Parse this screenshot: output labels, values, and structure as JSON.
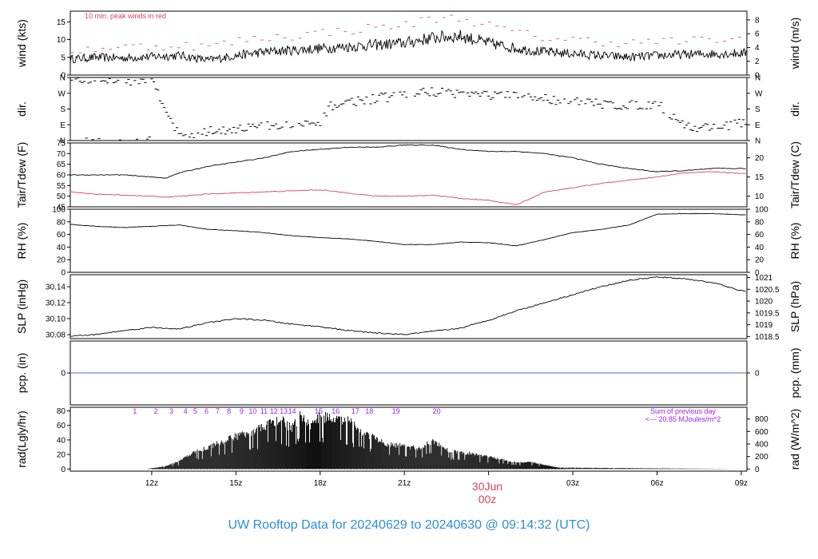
{
  "title": "UW Rooftop Data for 20240629  to  20240630 @ 09:14:32  (UTC)",
  "date_marker": {
    "date": "30Jun",
    "time": "00z"
  },
  "colors": {
    "primary": "#000000",
    "secondary": "#d6455a",
    "pcp": "#4a6fb5",
    "annot": "#a020f0",
    "title": "#2b8fd6"
  },
  "chart_data": [
    {
      "id": "wind",
      "type": "line",
      "ylabel_left": "wind (kts)",
      "ylabel_right": "wind (m/s)",
      "annotation": "10 min. peak winds in red",
      "ylim": [
        0,
        18
      ],
      "yticks_left": [
        0,
        5,
        10,
        15
      ],
      "ylim_right": [
        0,
        9.26
      ],
      "yticks_right": [
        0,
        2,
        4,
        6,
        8
      ],
      "x_hours": [
        9.1,
        10,
        11,
        12,
        13,
        14,
        15,
        16,
        17,
        18,
        19,
        20,
        21,
        22,
        23,
        24,
        25,
        26,
        27,
        28,
        29,
        30,
        31,
        32,
        33.2
      ],
      "series": [
        {
          "values": [
            4.5,
            5,
            4.8,
            5.2,
            5.5,
            4.2,
            5.5,
            6.5,
            7,
            7.5,
            8,
            8.5,
            9,
            10.5,
            11,
            9,
            7.5,
            6.5,
            6,
            5.5,
            5,
            5.5,
            5.8,
            6,
            6.2
          ]
        },
        {
          "values": [
            7,
            7.5,
            8,
            8,
            8.5,
            8,
            9.5,
            10.5,
            11,
            12,
            12.5,
            13.5,
            14,
            16,
            16,
            14,
            12,
            10.5,
            10,
            9.5,
            9,
            9.5,
            9.5,
            10,
            10
          ]
        }
      ]
    },
    {
      "id": "dir",
      "type": "scatter",
      "ylabel_left": "dir.",
      "ylabel_right": "dir.",
      "ylim": [
        0,
        360
      ],
      "yticks_left_labels": [
        "N",
        "E",
        "S",
        "W",
        "N"
      ],
      "yticks_right_labels": [
        "N",
        "E",
        "S",
        "W",
        "N"
      ],
      "ytick_values": [
        0,
        90,
        180,
        270,
        360
      ],
      "x_hours": [
        9.1,
        10,
        11,
        12,
        13,
        14,
        15,
        16,
        17,
        18,
        18.4,
        19,
        20,
        21,
        22,
        23,
        24,
        25,
        26,
        27,
        28,
        29,
        30,
        31,
        31.2,
        32,
        33.2
      ],
      "series": [
        {
          "values": [
            345,
            350,
            340,
            355,
            20,
            50,
            70,
            80,
            85,
            90,
            200,
            220,
            240,
            260,
            280,
            270,
            260,
            250,
            240,
            220,
            210,
            200,
            210,
            90,
            70,
            80,
            100
          ]
        }
      ]
    },
    {
      "id": "temp",
      "type": "line",
      "ylabel_left": "Tair/Tdew (F)",
      "ylabel_right": "Tair/Tdew (C)",
      "ylim": [
        45,
        75
      ],
      "yticks_left": [
        45,
        50,
        55,
        60,
        65,
        70,
        75
      ],
      "ylim_right": [
        7.22,
        23.89
      ],
      "yticks_right": [
        10,
        15,
        20
      ],
      "x_hours": [
        9.1,
        10,
        11,
        12,
        12.5,
        13,
        14,
        15,
        16,
        17,
        18,
        19,
        20,
        21,
        22,
        23,
        24,
        25,
        26,
        27,
        28,
        29,
        30,
        31,
        32,
        33.2
      ],
      "series": [
        {
          "values": [
            60,
            60,
            60,
            59,
            58.5,
            61,
            64,
            66,
            68,
            71,
            72,
            73,
            73,
            74,
            74,
            72,
            71,
            71,
            70,
            68,
            65,
            63,
            61.5,
            62,
            63,
            63
          ]
        },
        {
          "values": [
            52,
            51,
            50.5,
            50,
            49.5,
            50,
            51,
            51.5,
            52,
            52.5,
            53,
            51.5,
            50,
            50,
            50.5,
            49,
            48,
            46,
            52,
            54,
            56,
            57.5,
            59,
            61,
            61.5,
            60.5
          ]
        }
      ]
    },
    {
      "id": "rh",
      "type": "line",
      "ylabel_left": "RH (%)",
      "ylabel_right": "RH (%)",
      "ylim": [
        0,
        100
      ],
      "yticks_left": [
        0,
        20,
        40,
        60,
        80,
        100
      ],
      "ylim_right": [
        0,
        100
      ],
      "yticks_right": [
        0,
        20,
        40,
        60,
        80,
        100
      ],
      "x_hours": [
        9.1,
        10,
        11,
        12,
        13,
        14,
        15,
        16,
        17,
        18,
        19,
        20,
        21,
        22,
        23,
        24,
        25,
        26,
        27,
        28,
        29,
        30,
        31,
        32,
        33.2
      ],
      "series": [
        {
          "values": [
            76,
            73,
            71,
            73,
            75,
            68,
            66,
            63,
            58,
            55,
            53,
            49,
            44,
            44,
            48,
            47,
            42,
            52,
            63,
            68,
            75,
            92,
            93,
            93,
            91
          ]
        }
      ]
    },
    {
      "id": "slp",
      "type": "line",
      "ylabel_left": "SLP (inHg)",
      "ylabel_right": "SLP (hPa)",
      "ylim": [
        30.075,
        30.155
      ],
      "yticks_left": [
        30.08,
        30.1,
        30.12,
        30.14
      ],
      "ylim_right": [
        1018.41,
        1021.12
      ],
      "yticks_right": [
        1018.5,
        1019,
        1019.5,
        1020,
        1020.5,
        1021
      ],
      "x_hours": [
        9.1,
        10,
        11,
        12,
        13,
        14,
        15,
        16,
        17,
        18,
        19,
        20,
        21,
        22,
        23,
        24,
        25,
        26,
        27,
        28,
        29,
        30,
        31,
        32,
        33.2
      ],
      "series": [
        {
          "values": [
            30.078,
            30.08,
            30.085,
            30.089,
            30.087,
            30.095,
            30.1,
            30.098,
            30.093,
            30.09,
            30.085,
            30.082,
            30.08,
            30.084,
            30.088,
            30.098,
            30.11,
            30.12,
            30.13,
            30.14,
            30.148,
            30.152,
            30.15,
            30.145,
            30.133
          ]
        }
      ]
    },
    {
      "id": "pcp",
      "type": "line",
      "ylabel_left": "pcp. (in)",
      "ylabel_right": "pcp. (mm)",
      "ylim": [
        -1,
        1
      ],
      "yticks_left": [
        0
      ],
      "yticks_right": [
        0
      ],
      "x_hours": [
        9.1,
        33.2
      ],
      "series": [
        {
          "values": [
            0,
            0
          ]
        }
      ]
    },
    {
      "id": "rad",
      "type": "bar",
      "ylabel_left": "rad(Lgly/hr)",
      "ylabel_right": "rad (W/m^2)",
      "annotation_lines": [
        "Sum of previous day",
        "<--- 20.85 MJoules/m^2"
      ],
      "ylim": [
        -3,
        85
      ],
      "yticks_left": [
        0,
        20,
        40,
        60,
        80
      ],
      "ylim_right": [
        -34.9,
        988.2
      ],
      "yticks_right": [
        0,
        200,
        400,
        600,
        800
      ],
      "hour_labels": [
        "1",
        "2",
        "3",
        "4",
        "5",
        "6",
        "7",
        "8",
        "9",
        "10",
        "11",
        "12",
        "13",
        "14",
        "15",
        "16",
        "17",
        "18",
        "19",
        "20"
      ],
      "hour_label_x": [
        11.4,
        12.15,
        12.7,
        13.2,
        13.55,
        13.95,
        14.35,
        14.75,
        15.2,
        15.6,
        16.0,
        16.35,
        16.7,
        17.0,
        17.95,
        18.55,
        19.25,
        19.75,
        20.7,
        22.15
      ],
      "x_hours": [
        9.1,
        11.8,
        12.5,
        13,
        13.5,
        14,
        14.5,
        15,
        15.5,
        16,
        16.3,
        16.6,
        17,
        17.3,
        17.6,
        18,
        18.5,
        19,
        19.5,
        20,
        20.3,
        21,
        21.5,
        22,
        22.5,
        23,
        23.5,
        24,
        24.5,
        25,
        25.5,
        26,
        26.5,
        33.2
      ],
      "series": [
        {
          "values": [
            0,
            0,
            4,
            12,
            25,
            32,
            40,
            48,
            55,
            62,
            70,
            72,
            60,
            80,
            65,
            78,
            74,
            70,
            55,
            45,
            36,
            34,
            30,
            42,
            28,
            25,
            22,
            18,
            14,
            10,
            10,
            6,
            2,
            0
          ]
        }
      ]
    }
  ],
  "x_axis": {
    "range": [
      9.1,
      33.2
    ],
    "ticks": [
      {
        "value": 12,
        "label": "12z"
      },
      {
        "value": 15,
        "label": "15z"
      },
      {
        "value": 18,
        "label": "18z"
      },
      {
        "value": 21,
        "label": "21z"
      },
      {
        "value": 24,
        "label": ""
      },
      {
        "value": 27,
        "label": "03z"
      },
      {
        "value": 30,
        "label": "06z"
      },
      {
        "value": 33,
        "label": "09z"
      }
    ]
  }
}
